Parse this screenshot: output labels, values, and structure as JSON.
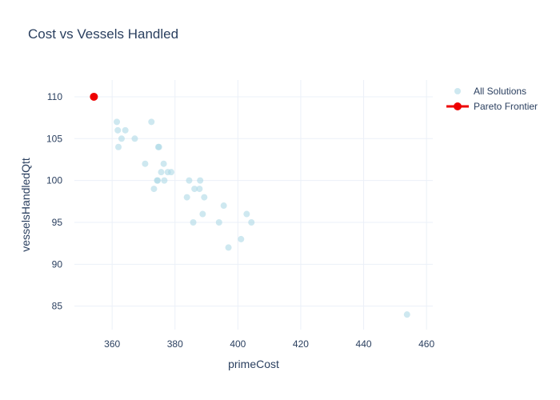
{
  "chart_data": {
    "type": "scatter",
    "title": "Cost vs Vessels Handled",
    "xlabel": "primeCost",
    "ylabel": "vesselsHandledQtt",
    "xlim": [
      348,
      462
    ],
    "ylim": [
      82.2,
      112
    ],
    "xticks": [
      360,
      380,
      400,
      420,
      440,
      460
    ],
    "yticks": [
      85,
      90,
      95,
      100,
      105,
      110
    ],
    "grid": true,
    "legend_position": "top-right",
    "series": [
      {
        "name": "All Solutions",
        "kind": "markers",
        "color": "#add8e6",
        "x": [
          354.5,
          361.5,
          361.8,
          362.0,
          363.0,
          364.2,
          367.2,
          370.5,
          372.5,
          373.3,
          374.3,
          374.5,
          374.7,
          374.9,
          375.6,
          376.4,
          376.6,
          377.7,
          378.8,
          383.8,
          384.5,
          385.8,
          386.2,
          387.8,
          388.0,
          388.8,
          389.3,
          394.0,
          395.5,
          397.0,
          401.0,
          402.8,
          404.3,
          453.8
        ],
        "y": [
          110,
          107,
          106,
          104,
          105,
          106,
          105,
          102,
          107,
          99,
          100,
          100,
          104,
          104,
          101,
          102,
          100,
          101,
          101,
          98,
          100,
          95,
          99,
          99,
          100,
          96,
          98,
          95,
          97,
          92,
          93,
          96,
          95,
          84
        ]
      },
      {
        "name": "Pareto Frontier",
        "kind": "lines+markers",
        "color": "#ee0000",
        "x": [
          354.2
        ],
        "y": [
          110
        ]
      }
    ]
  }
}
